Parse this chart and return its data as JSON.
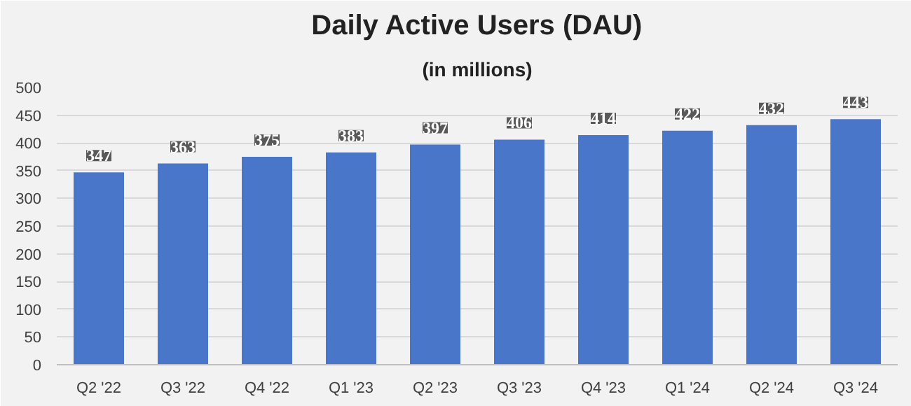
{
  "chart_data": {
    "type": "bar",
    "title": "Daily Active Users (DAU)",
    "subtitle": "(in millions)",
    "categories": [
      "Q2 '22",
      "Q3 '22",
      "Q4 '22",
      "Q1 '23",
      "Q2 '23",
      "Q3 '23",
      "Q4 '23",
      "Q1 '24",
      "Q2 '24",
      "Q3 '24"
    ],
    "values": [
      347,
      363,
      375,
      383,
      397,
      406,
      414,
      422,
      432,
      443
    ],
    "color": "#4a76c9",
    "ylim": [
      0,
      500
    ],
    "yticks": [
      0,
      50,
      100,
      150,
      200,
      250,
      300,
      350,
      400,
      450,
      500
    ],
    "grid": "y",
    "data_labels": true
  }
}
